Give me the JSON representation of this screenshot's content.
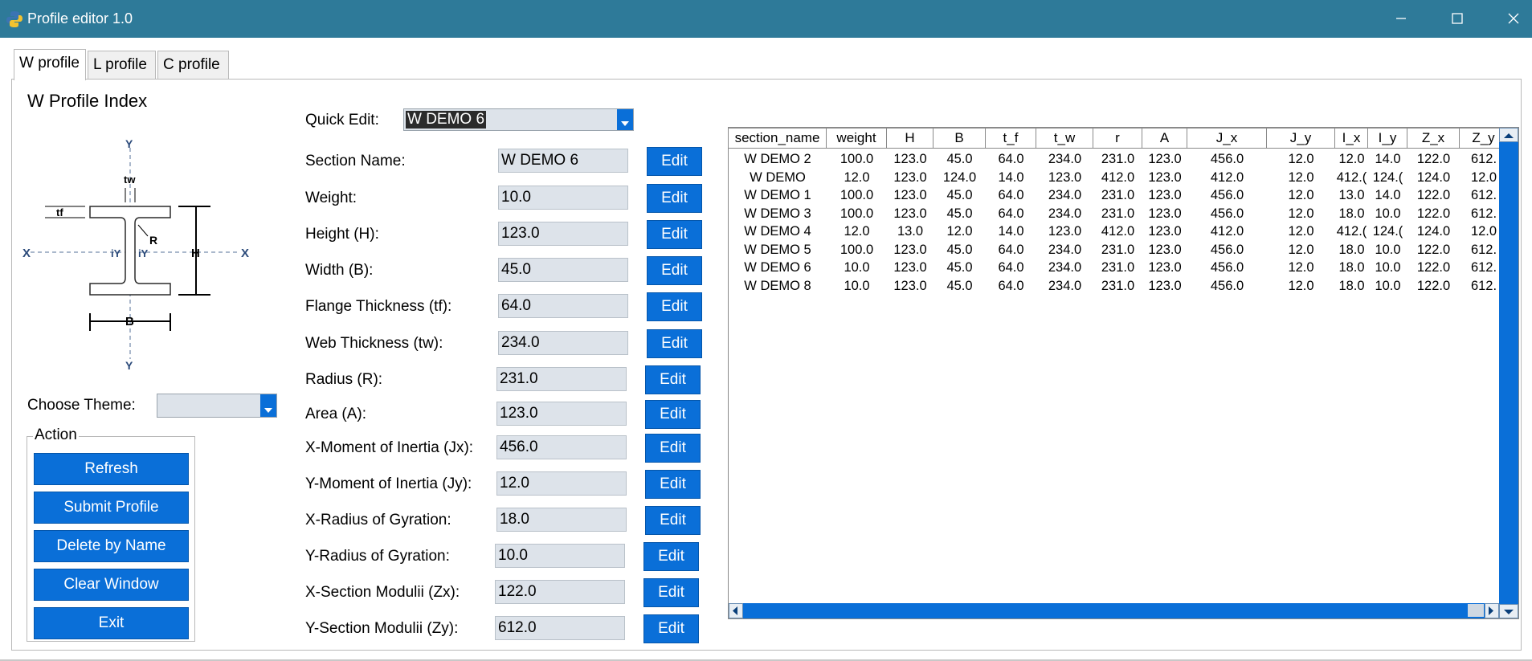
{
  "window": {
    "title": "Profile editor 1.0"
  },
  "tabs": [
    {
      "label": "W profile",
      "active": true
    },
    {
      "label": "L profile",
      "active": false
    },
    {
      "label": "C profile",
      "active": false
    }
  ],
  "panel": {
    "title": "W Profile Index"
  },
  "diagram": {
    "labels": {
      "y_top": "Y",
      "y_bottom": "Y",
      "x_left": "X",
      "x_right": "X",
      "tw": "tw",
      "tf": "tf",
      "r": "R",
      "h": "H",
      "b": "B",
      "iy_left": "iY",
      "iy_right": "iY"
    }
  },
  "theme": {
    "label": "Choose Theme:",
    "value": ""
  },
  "action": {
    "legend": "Action",
    "buttons": [
      "Refresh",
      "Submit Profile",
      "Delete by Name",
      "Clear Window",
      "Exit"
    ]
  },
  "quick_edit": {
    "label": "Quick Edit:",
    "value": "W DEMO 6"
  },
  "form": {
    "edit_label": "Edit",
    "fields": [
      {
        "label": "Section Name:",
        "value": "W DEMO 6"
      },
      {
        "label": "Weight:",
        "value": "10.0"
      },
      {
        "label": "Height (H):",
        "value": "123.0"
      },
      {
        "label": "Width (B):",
        "value": "45.0"
      },
      {
        "label": "Flange Thickness (tf):",
        "value": "64.0"
      },
      {
        "label": "Web Thickness (tw):",
        "value": "234.0"
      },
      {
        "label": "Radius (R):",
        "value": "231.0"
      },
      {
        "label": "Area (A):",
        "value": "123.0"
      },
      {
        "label": "X-Moment of Inertia (Jx):",
        "value": "456.0"
      },
      {
        "label": "Y-Moment of Inertia (Jy):",
        "value": "12.0"
      },
      {
        "label": "X-Radius of Gyration:",
        "value": "18.0"
      },
      {
        "label": "Y-Radius of Gyration:",
        "value": "10.0"
      },
      {
        "label": "X-Section Modulii (Zx):",
        "value": "122.0"
      },
      {
        "label": "Y-Section Modulii (Zy):",
        "value": "612.0"
      }
    ]
  },
  "table": {
    "columns": [
      "section_name",
      "weight",
      "H",
      "B",
      "t_f",
      "t_w",
      "r",
      "A",
      "J_x",
      "J_y",
      "I_x",
      "I_y",
      "Z_x",
      "Z_y"
    ],
    "rows": [
      [
        "W DEMO 2",
        "100.0",
        "123.0",
        "45.0",
        "64.0",
        "234.0",
        "231.0",
        "123.0",
        "456.0",
        "12.0",
        "12.0",
        "14.0",
        "122.0",
        "612."
      ],
      [
        "W DEMO",
        "12.0",
        "123.0",
        "124.0",
        "14.0",
        "123.0",
        "412.0",
        "123.0",
        "412.0",
        "12.0",
        "412.(",
        "124.(",
        "124.0",
        "12.0"
      ],
      [
        "W DEMO 1",
        "100.0",
        "123.0",
        "45.0",
        "64.0",
        "234.0",
        "231.0",
        "123.0",
        "456.0",
        "12.0",
        "13.0",
        "14.0",
        "122.0",
        "612."
      ],
      [
        "W DEMO 3",
        "100.0",
        "123.0",
        "45.0",
        "64.0",
        "234.0",
        "231.0",
        "123.0",
        "456.0",
        "12.0",
        "18.0",
        "10.0",
        "122.0",
        "612."
      ],
      [
        "W DEMO 4",
        "12.0",
        "13.0",
        "12.0",
        "14.0",
        "123.0",
        "412.0",
        "123.0",
        "412.0",
        "12.0",
        "412.(",
        "124.(",
        "124.0",
        "12.0"
      ],
      [
        "W DEMO 5",
        "100.0",
        "123.0",
        "45.0",
        "64.0",
        "234.0",
        "231.0",
        "123.0",
        "456.0",
        "12.0",
        "18.0",
        "10.0",
        "122.0",
        "612."
      ],
      [
        "W DEMO 6",
        "10.0",
        "123.0",
        "45.0",
        "64.0",
        "234.0",
        "231.0",
        "123.0",
        "456.0",
        "12.0",
        "18.0",
        "10.0",
        "122.0",
        "612."
      ],
      [
        "W DEMO 8",
        "10.0",
        "123.0",
        "45.0",
        "64.0",
        "234.0",
        "231.0",
        "123.0",
        "456.0",
        "12.0",
        "18.0",
        "10.0",
        "122.0",
        "612."
      ]
    ]
  },
  "colors": {
    "titlebar": "#2e7a99",
    "accent": "#0a6fd8",
    "field_bg": "#dde3ea"
  },
  "icons": [
    "python-app-icon",
    "minimize-icon",
    "maximize-icon",
    "close-icon",
    "chevron-down-icon",
    "arrow-up-icon",
    "arrow-down-icon",
    "arrow-left-icon",
    "arrow-right-icon"
  ]
}
